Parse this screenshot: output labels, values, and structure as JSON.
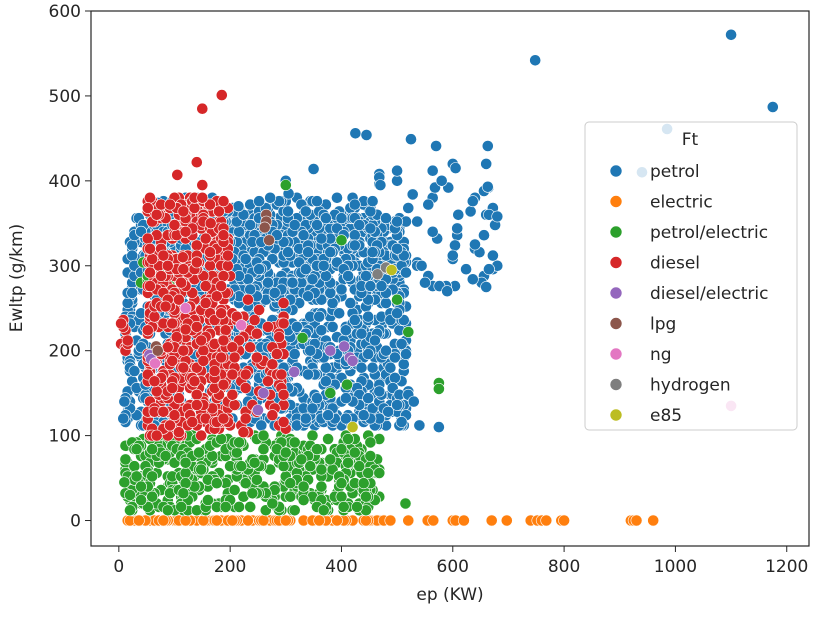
{
  "chart_data": {
    "type": "scatter",
    "xlabel": "ep (KW)",
    "ylabel": "Ewltp (g/km)",
    "xlim": [
      -50,
      1240
    ],
    "ylim": [
      -30,
      600
    ],
    "x_ticks": [
      0,
      200,
      400,
      600,
      800,
      1000,
      1200
    ],
    "y_ticks": [
      0,
      100,
      200,
      300,
      400,
      500,
      600
    ],
    "grid": false,
    "legend": {
      "title": "Ft",
      "placement": "center-right",
      "entries": [
        "petrol",
        "electric",
        "petrol/electric",
        "diesel",
        "diesel/electric",
        "lpg",
        "ng",
        "hydrogen",
        "e85"
      ]
    },
    "series": [
      {
        "name": "petrol",
        "color": "#1f77b4",
        "clusters": [
          {
            "x": [
              10,
              520
            ],
            "y": [
              110,
              360
            ],
            "n": 1400
          },
          {
            "x": [
              40,
              480
            ],
            "y": [
              260,
              380
            ],
            "n": 350
          },
          {
            "x": [
              440,
              680
            ],
            "y": [
              270,
              420
            ],
            "n": 60
          }
        ],
        "points": [
          [
            748,
            542
          ],
          [
            1100,
            572
          ],
          [
            1175,
            487
          ],
          [
            985,
            461
          ],
          [
            940,
            410
          ],
          [
            425,
            456
          ],
          [
            445,
            454
          ],
          [
            525,
            449
          ],
          [
            570,
            441
          ],
          [
            663,
            441
          ],
          [
            350,
            414
          ],
          [
            600,
            420
          ],
          [
            605,
            415
          ],
          [
            663,
            393
          ],
          [
            665,
            360
          ],
          [
            680,
            358
          ],
          [
            665,
            296
          ],
          [
            660,
            275
          ],
          [
            640,
            325
          ],
          [
            575,
            110
          ],
          [
            540,
            112
          ],
          [
            530,
            140
          ],
          [
            470,
            395
          ],
          [
            300,
            400
          ],
          [
            305,
            385
          ],
          [
            10,
            140
          ],
          [
            8,
            120
          ],
          [
            70,
            374
          ],
          [
            95,
            375
          ],
          [
            215,
            370
          ],
          [
            500,
            320
          ],
          [
            550,
            280
          ],
          [
            590,
            270
          ],
          [
            610,
            360
          ]
        ]
      },
      {
        "name": "electric",
        "color": "#ff7f0e",
        "clusters": [
          {
            "x": [
              10,
              500
            ],
            "y": [
              0,
              0
            ],
            "n": 120
          }
        ],
        "points": [
          [
            520,
            0
          ],
          [
            555,
            0
          ],
          [
            565,
            0
          ],
          [
            600,
            0
          ],
          [
            605,
            0
          ],
          [
            620,
            0
          ],
          [
            670,
            0
          ],
          [
            697,
            0
          ],
          [
            740,
            0
          ],
          [
            752,
            0
          ],
          [
            760,
            0
          ],
          [
            768,
            0
          ],
          [
            795,
            0
          ],
          [
            800,
            0
          ],
          [
            920,
            0
          ],
          [
            925,
            0
          ],
          [
            930,
            0
          ],
          [
            960,
            0
          ]
        ]
      },
      {
        "name": "petrol/electric",
        "color": "#2ca02c",
        "clusters": [
          {
            "x": [
              10,
              470
            ],
            "y": [
              10,
              100
            ],
            "n": 450
          },
          {
            "x": [
              40,
              100
            ],
            "y": [
              270,
              305
            ],
            "n": 15
          }
        ],
        "points": [
          [
            575,
            162
          ],
          [
            575,
            155
          ],
          [
            520,
            222
          ],
          [
            515,
            20
          ],
          [
            300,
            395
          ],
          [
            400,
            330
          ],
          [
            20,
            30
          ],
          [
            10,
            45
          ],
          [
            330,
            215
          ],
          [
            380,
            150
          ],
          [
            410,
            160
          ],
          [
            500,
            260
          ]
        ]
      },
      {
        "name": "diesel",
        "color": "#d62728",
        "clusters": [
          {
            "x": [
              50,
              200
            ],
            "y": [
              100,
              380
            ],
            "n": 500
          },
          {
            "x": [
              200,
              300
            ],
            "y": [
              100,
              260
            ],
            "n": 70
          },
          {
            "x": [
              5,
              15
            ],
            "y": [
              200,
              240
            ],
            "n": 12
          }
        ],
        "points": [
          [
            150,
            485
          ],
          [
            185,
            501
          ],
          [
            105,
            407
          ],
          [
            140,
            422
          ],
          [
            150,
            395
          ],
          [
            150,
            380
          ],
          [
            120,
            340
          ],
          [
            165,
            350
          ],
          [
            120,
            225
          ],
          [
            115,
            310
          ]
        ]
      },
      {
        "name": "diesel/electric",
        "color": "#9467bd",
        "points": [
          [
            55,
            195
          ],
          [
            58,
            190
          ],
          [
            415,
            192
          ],
          [
            420,
            188
          ],
          [
            380,
            200
          ],
          [
            315,
            175
          ],
          [
            250,
            130
          ],
          [
            260,
            150
          ],
          [
            405,
            205
          ]
        ]
      },
      {
        "name": "lpg",
        "color": "#8c564b",
        "points": [
          [
            265,
            360
          ],
          [
            265,
            352
          ],
          [
            262,
            345
          ],
          [
            67,
            205
          ],
          [
            70,
            200
          ],
          [
            270,
            330
          ]
        ]
      },
      {
        "name": "ng",
        "color": "#e377c2",
        "points": [
          [
            1100,
            135
          ],
          [
            120,
            250
          ],
          [
            220,
            230
          ],
          [
            65,
            185
          ]
        ]
      },
      {
        "name": "hydrogen",
        "color": "#7f7f7f",
        "points": [
          [
            485,
            296
          ],
          [
            465,
            290
          ],
          [
            480,
            298
          ]
        ]
      },
      {
        "name": "e85",
        "color": "#bcbd22",
        "points": [
          [
            490,
            295
          ],
          [
            420,
            110
          ]
        ]
      }
    ]
  }
}
